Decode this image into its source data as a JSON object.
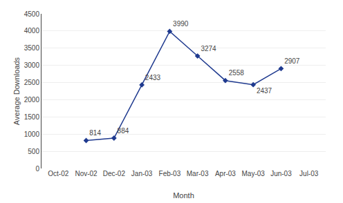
{
  "chart_data": {
    "type": "line",
    "xlabel": "Month",
    "ylabel": "Average Downloads",
    "categories": [
      "Oct-02",
      "Nov-02",
      "Dec-02",
      "Jan-03",
      "Feb-03",
      "Mar-03",
      "Apr-03",
      "May-03",
      "Jun-03",
      "Jul-03"
    ],
    "values": [
      null,
      814,
      884,
      2433,
      3990,
      3274,
      2558,
      2437,
      2907,
      null
    ],
    "color": "#1F3A8F",
    "marker": "diamond",
    "line_style": "solid",
    "ylim": [
      0,
      4500
    ],
    "yticks": [
      0,
      500,
      1000,
      1500,
      2000,
      2500,
      3000,
      3500,
      4000,
      4500
    ],
    "grid": true,
    "data_labels": true
  }
}
